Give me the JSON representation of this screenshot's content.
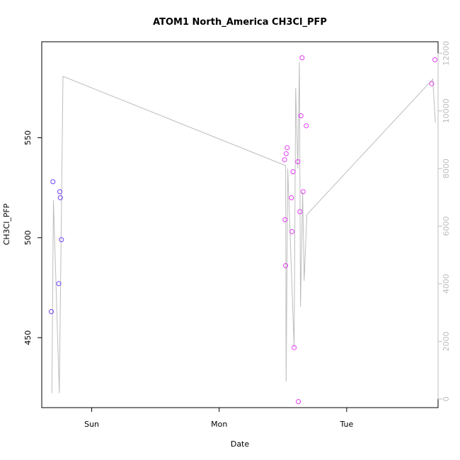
{
  "chart_data": {
    "type": "scatter",
    "title": "ATOM1 North_America CH3Cl_PFP",
    "xlabel": "Date",
    "ylabel": "CH3Cl_PFP",
    "x_tick_labels": [
      "Sun",
      "Mon",
      "Tue"
    ],
    "x_tick_hours": [
      24,
      48,
      72
    ],
    "xlim_hours": [
      14.6,
      89.2
    ],
    "ylim": [
      415,
      598
    ],
    "y_ticks": [
      450,
      500,
      550
    ],
    "y2lim": [
      -300,
      12400
    ],
    "y2_ticks": [
      0,
      2000,
      4000,
      6000,
      8000,
      10000,
      12000
    ],
    "colors": {
      "early": "#6a3cf5",
      "late": "#e23cf0",
      "line": "#bdbdbd",
      "frame": "#000000"
    },
    "series": [
      {
        "points": [
          {
            "x": 16.4,
            "y": 463
          },
          {
            "x": 16.7,
            "y": 528
          },
          {
            "x": 17.8,
            "y": 477
          },
          {
            "x": 18.0,
            "y": 523
          },
          {
            "x": 18.1,
            "y": 520
          },
          {
            "x": 18.3,
            "y": 499
          },
          {
            "x": 60.3,
            "y": 539
          },
          {
            "x": 60.4,
            "y": 509
          },
          {
            "x": 60.5,
            "y": 486
          },
          {
            "x": 60.6,
            "y": 542
          },
          {
            "x": 60.8,
            "y": 545
          },
          {
            "x": 61.6,
            "y": 520
          },
          {
            "x": 61.7,
            "y": 503
          },
          {
            "x": 61.9,
            "y": 533
          },
          {
            "x": 62.1,
            "y": 445
          },
          {
            "x": 62.8,
            "y": 538
          },
          {
            "x": 62.9,
            "y": 418
          },
          {
            "x": 63.2,
            "y": 513
          },
          {
            "x": 63.4,
            "y": 561
          },
          {
            "x": 63.6,
            "y": 590
          },
          {
            "x": 63.8,
            "y": 523
          },
          {
            "x": 64.4,
            "y": 556
          },
          {
            "x": 88.0,
            "y": 577
          },
          {
            "x": 88.6,
            "y": 589
          }
        ]
      },
      {
        "axis": "right",
        "points": [
          {
            "x": 16.5,
            "y": 200
          },
          {
            "x": 16.8,
            "y": 6900
          },
          {
            "x": 17.9,
            "y": 200
          },
          {
            "x": 18.6,
            "y": 11200
          },
          {
            "x": 60.5,
            "y": 8100
          },
          {
            "x": 60.6,
            "y": 600
          },
          {
            "x": 60.9,
            "y": 8000
          },
          {
            "x": 62.1,
            "y": 1800
          },
          {
            "x": 62.4,
            "y": 10800
          },
          {
            "x": 62.8,
            "y": 8000
          },
          {
            "x": 63.1,
            "y": 11700
          },
          {
            "x": 63.3,
            "y": 3200
          },
          {
            "x": 63.7,
            "y": 7200
          },
          {
            "x": 64.0,
            "y": 4100
          },
          {
            "x": 64.5,
            "y": 6400
          },
          {
            "x": 88.2,
            "y": 11100
          },
          {
            "x": 88.7,
            "y": 9600
          }
        ]
      }
    ]
  }
}
